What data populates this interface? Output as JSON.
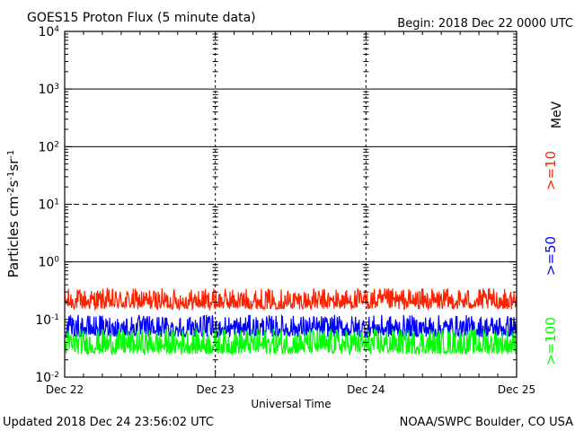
{
  "header": {
    "title": "GOES15 Proton Flux (5 minute data)",
    "begin": "Begin: 2018 Dec 22 0000 UTC"
  },
  "footer": {
    "updated": "Updated 2018 Dec 24 23:56:02 UTC",
    "credit": "NOAA/SWPC Boulder, CO USA"
  },
  "chart_data": {
    "type": "line",
    "title": "GOES15 Proton Flux (5 minute data)",
    "xlabel": "Universal Time",
    "ylabel": "Particles cm⁻²s⁻¹sr⁻¹",
    "y_scale": "log",
    "ylim": [
      0.01,
      10000
    ],
    "xlim": [
      "2018-12-22",
      "2018-12-25"
    ],
    "x_ticks": [
      "Dec 22",
      "Dec 23",
      "Dec 24",
      "Dec 25"
    ],
    "y_ticks": [
      {
        "base": "10",
        "exp": "4"
      },
      {
        "base": "10",
        "exp": "3"
      },
      {
        "base": "10",
        "exp": "2"
      },
      {
        "base": "10",
        "exp": "1"
      },
      {
        "base": "10",
        "exp": "0"
      },
      {
        "base": "10",
        "exp": "-1"
      },
      {
        "base": "10",
        "exp": "-2"
      }
    ],
    "threshold_lines": [
      {
        "value": 1000,
        "style": "solid"
      },
      {
        "value": 100,
        "style": "solid"
      },
      {
        "value": 10,
        "style": "dashed"
      },
      {
        "value": 1,
        "style": "solid"
      }
    ],
    "unit_label": "MeV",
    "series": [
      {
        "name": ">=10",
        "color": "#ff2200",
        "typical_range": [
          0.15,
          0.35
        ]
      },
      {
        "name": ">=50",
        "color": "#0000ff",
        "typical_range": [
          0.05,
          0.12
        ]
      },
      {
        "name": ">=100",
        "color": "#00ff00",
        "typical_range": [
          0.025,
          0.07
        ]
      }
    ]
  }
}
